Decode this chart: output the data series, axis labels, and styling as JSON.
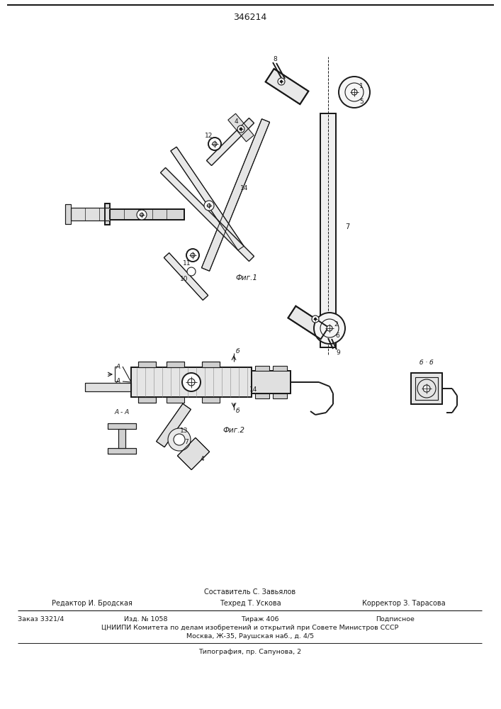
{
  "title": "346214",
  "bg_color": "#ffffff",
  "line_color": "#1a1a1a",
  "fig_width": 7.07,
  "fig_height": 10.0,
  "footer_sestavitel": "Составитель С. Завьялов",
  "footer_redaktor": "Редактор И. Бродская",
  "footer_tehred": "Техред Т. Ускова",
  "footer_korrektor": "Корректор З. Тарасова",
  "footer_zakaz": "Заказ 3321/4",
  "footer_izd": "Изд. № 1058",
  "footer_tirazh": "Тираж 406",
  "footer_podpisnoe": "Подписное",
  "footer_cniipi": "ЦНИИПИ Комитета по делам изобретений и открытий при Совете Министров СССР",
  "footer_moscow": "Москва, Ж-35, Раушская наб., д. 4/5",
  "footer_tipografiya": "Типография, пр. Сапунова, 2"
}
